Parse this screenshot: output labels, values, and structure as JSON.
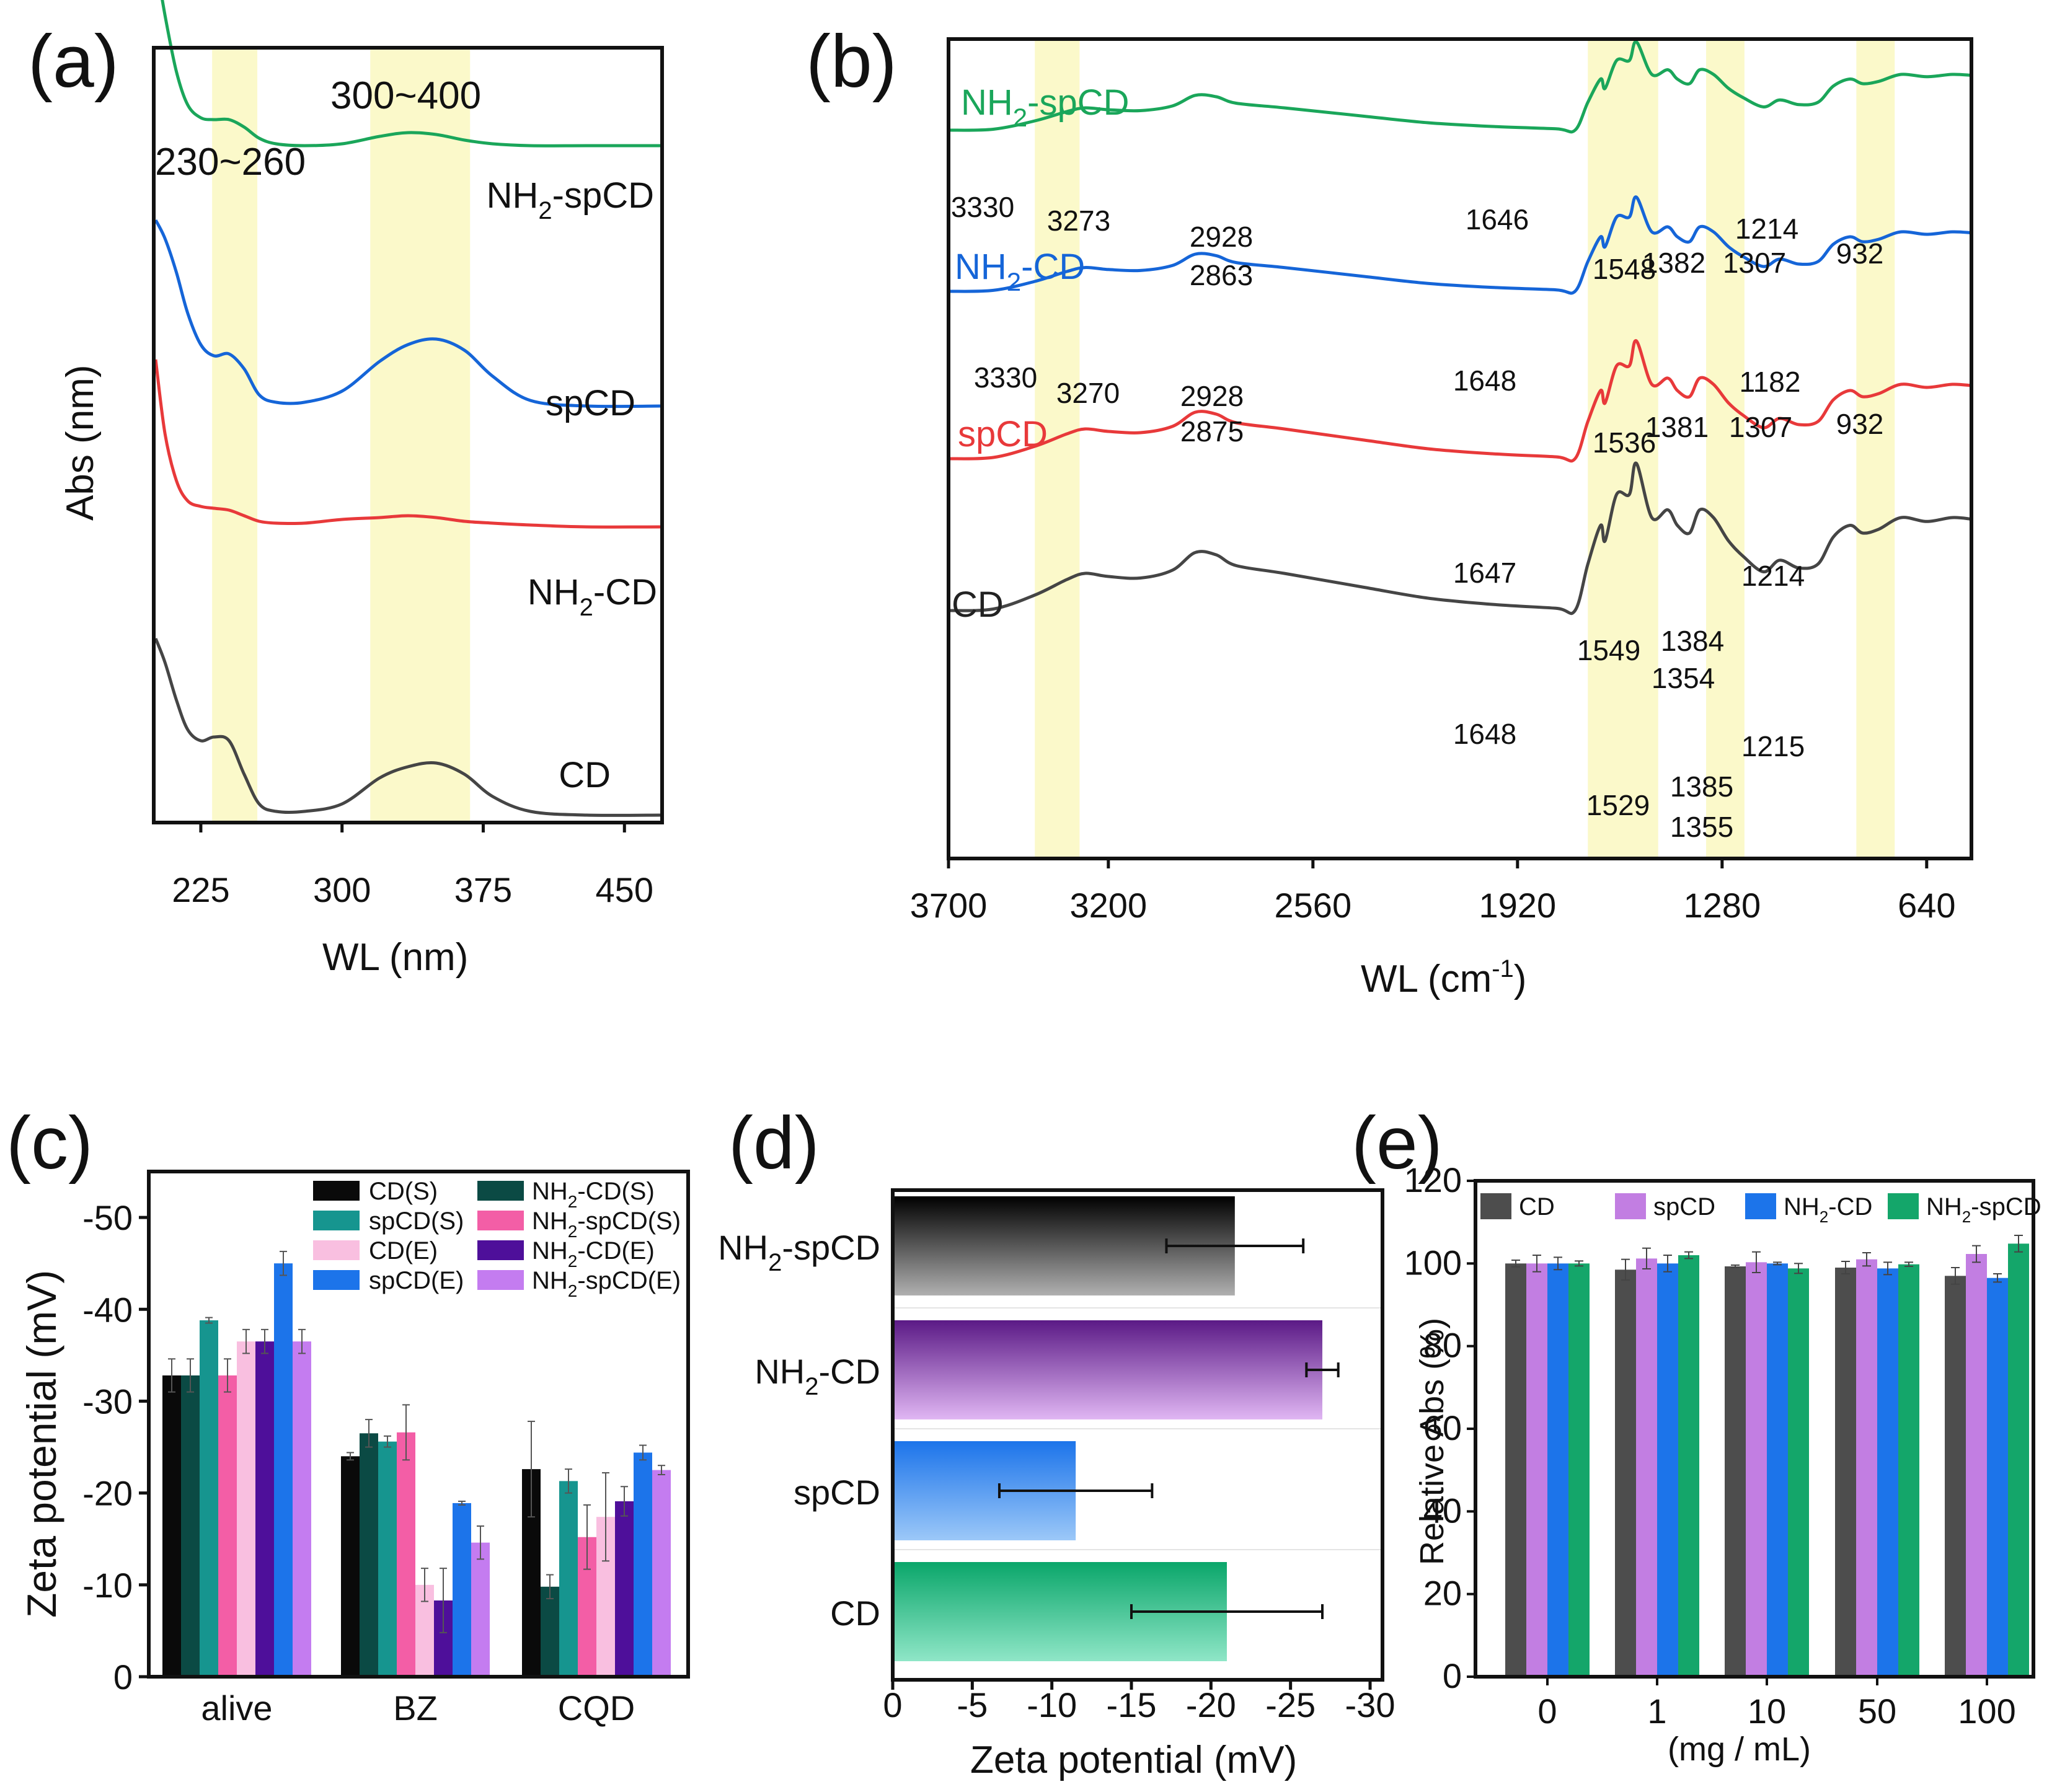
{
  "panels": {
    "a": {
      "letter": "(a)",
      "xlabel": "WL (nm)",
      "ylabel": "Abs (nm)",
      "band_labels": [
        "230~260",
        "300~400"
      ],
      "xticks": [
        "225",
        "300",
        "375",
        "450"
      ]
    },
    "b": {
      "letter": "(b)",
      "xlabel_main": "WL (cm",
      "xlabel_sup": "-1",
      "xlabel_end": ")",
      "xticks": [
        "3700",
        "3200",
        "2560",
        "1920",
        "1280",
        "640"
      ]
    },
    "c": {
      "letter": "(c)",
      "ylabel": "Zeta potential (mV)"
    },
    "d": {
      "letter": "(d)",
      "xlabel": "Zeta potential (mV)"
    },
    "e": {
      "letter": "(e)",
      "ylabel": "Relative Abs (%)",
      "xlabel": "(mg / mL)"
    }
  },
  "chart_data": [
    {
      "panel": "a",
      "type": "line",
      "xlabel": "WL (nm)",
      "ylabel": "Abs (nm)",
      "xlim": [
        200,
        470
      ],
      "highlight_bands": [
        {
          "label": "230~260",
          "range": [
            231,
            255
          ]
        },
        {
          "label": "300~400",
          "range": [
            315,
            368
          ]
        }
      ],
      "series": [
        {
          "name": "NH2-spCD",
          "label_main": "NH",
          "label_sub": "2",
          "label_tail": "-spCD",
          "color": "#1aa65a",
          "offset": 3.6,
          "x": [
            201,
            206,
            212,
            218,
            225,
            232,
            240,
            248,
            256,
            265,
            280,
            300,
            320,
            335,
            350,
            365,
            380,
            400,
            430,
            470
          ],
          "y": [
            1.0,
            0.7,
            0.4,
            0.22,
            0.15,
            0.14,
            0.14,
            0.1,
            0.04,
            0.01,
            0.0,
            0.01,
            0.05,
            0.07,
            0.06,
            0.03,
            0.01,
            0.0,
            0.0,
            0.0
          ]
        },
        {
          "name": "spCD",
          "label_main": "spCD",
          "label_sub": "",
          "label_tail": "",
          "color": "#1565d8",
          "offset": 2.2,
          "x": [
            201,
            206,
            212,
            218,
            225,
            232,
            240,
            248,
            256,
            265,
            280,
            300,
            320,
            335,
            350,
            365,
            380,
            400,
            430,
            470
          ],
          "y": [
            1.0,
            0.9,
            0.72,
            0.5,
            0.33,
            0.27,
            0.28,
            0.2,
            0.06,
            0.02,
            0.02,
            0.08,
            0.24,
            0.33,
            0.36,
            0.3,
            0.16,
            0.03,
            0.0,
            0.0
          ]
        },
        {
          "name": "NH2-CD",
          "label_main": "NH",
          "label_sub": "2",
          "label_tail": "-CD",
          "color": "#e8393a",
          "offset": 1.55,
          "x": [
            201,
            206,
            212,
            218,
            225,
            232,
            240,
            248,
            256,
            265,
            280,
            300,
            320,
            335,
            350,
            365,
            380,
            400,
            430,
            470
          ],
          "y": [
            0.9,
            0.5,
            0.25,
            0.14,
            0.11,
            0.1,
            0.09,
            0.06,
            0.03,
            0.02,
            0.02,
            0.04,
            0.05,
            0.06,
            0.05,
            0.03,
            0.02,
            0.01,
            0.0,
            0.0
          ]
        },
        {
          "name": "CD",
          "label_main": "CD",
          "label_sub": "",
          "label_tail": "",
          "color": "#454545",
          "offset": 0.0,
          "x": [
            201,
            206,
            212,
            218,
            225,
            232,
            240,
            248,
            256,
            265,
            280,
            300,
            320,
            335,
            350,
            365,
            380,
            400,
            430,
            470
          ],
          "y": [
            0.95,
            0.82,
            0.62,
            0.46,
            0.4,
            0.42,
            0.4,
            0.22,
            0.06,
            0.02,
            0.02,
            0.06,
            0.2,
            0.26,
            0.28,
            0.22,
            0.1,
            0.02,
            0.0,
            0.0
          ]
        }
      ]
    },
    {
      "panel": "b",
      "type": "line",
      "xlabel": "WL (cm-1)",
      "xlim": [
        3700,
        500
      ],
      "x_reversed": true,
      "highlight_bands": [
        [
          3430,
          3290
        ],
        [
          1700,
          1480
        ],
        [
          1330,
          1210
        ],
        [
          860,
          740
        ]
      ],
      "series": [
        {
          "name": "NH2-spCD",
          "label_main": "NH",
          "label_sub": "2",
          "label_tail": "-spCD",
          "color": "#1aa65a",
          "peaks": [
            "3330",
            "3273",
            "2928",
            "2863",
            "1646",
            "1548",
            "1382",
            "1307",
            "1214",
            "932"
          ]
        },
        {
          "name": "NH2-CD",
          "label_main": "NH",
          "label_sub": "2",
          "label_tail": "-CD",
          "color": "#1565d8",
          "peaks": [
            "3330",
            "3270",
            "2928",
            "2875",
            "1648",
            "1536",
            "1381",
            "1307",
            "1182",
            "932"
          ]
        },
        {
          "name": "spCD",
          "label_main": "spCD",
          "label_sub": "",
          "label_tail": "",
          "color": "#e8393a",
          "peaks": [
            "1647",
            "1549",
            "1384",
            "1354",
            "1214"
          ]
        },
        {
          "name": "CD",
          "label_main": "CD",
          "label_sub": "",
          "label_tail": "",
          "color": "#454545",
          "peaks": [
            "1648",
            "1529",
            "1385",
            "1355",
            "1215"
          ]
        }
      ]
    },
    {
      "panel": "c",
      "type": "bar",
      "ylabel": "Zeta potential (mV)",
      "ylim": [
        0,
        -55
      ],
      "yticks": [
        "0",
        "-10",
        "-20",
        "-30",
        "-40",
        "-50"
      ],
      "categories": [
        "alive",
        "BZ",
        "CQD"
      ],
      "series": [
        {
          "name": "CD(S)",
          "label_main": "CD(S)",
          "label_sub": "",
          "label_tail": "",
          "color": "#0a0a0a",
          "values": [
            -32.8,
            -24.0,
            -22.6
          ],
          "errors": [
            1.8,
            0.4,
            5.2
          ]
        },
        {
          "name": "NH2-CD(S)",
          "label_main": "NH",
          "label_sub": "2",
          "label_tail": "-CD(S)",
          "color": "#0b4a44",
          "values": [
            -32.8,
            -26.5,
            -9.8
          ],
          "errors": [
            1.8,
            1.5,
            1.3
          ]
        },
        {
          "name": "spCD(S)",
          "label_main": "spCD(S)",
          "label_sub": "",
          "label_tail": "",
          "color": "#16958f",
          "values": [
            -38.8,
            -25.6,
            -21.3
          ],
          "errors": [
            0.3,
            0.6,
            1.3
          ]
        },
        {
          "name": "NH2-spCD(S)",
          "label_main": "NH",
          "label_sub": "2",
          "label_tail": "-spCD(S)",
          "color": "#f35ea6",
          "values": [
            -32.8,
            -26.6,
            -15.2
          ],
          "errors": [
            1.8,
            3.0,
            3.5
          ]
        },
        {
          "name": "CD(E)",
          "label_main": "CD(E)",
          "label_sub": "",
          "label_tail": "",
          "color": "#f9bfe0",
          "values": [
            -36.5,
            -10.0,
            -17.4
          ],
          "errors": [
            1.3,
            1.8,
            4.8
          ]
        },
        {
          "name": "NH2-CD(E)",
          "label_main": "NH",
          "label_sub": "2",
          "label_tail": "-CD(E)",
          "color": "#4e0f9a",
          "values": [
            -36.5,
            -8.3,
            -19.1
          ],
          "errors": [
            1.3,
            3.5,
            1.6
          ]
        },
        {
          "name": "spCD(E)",
          "label_main": "spCD(E)",
          "label_sub": "",
          "label_tail": "",
          "color": "#1c74ea",
          "values": [
            -45.0,
            -18.9,
            -24.4
          ],
          "errors": [
            1.3,
            0.2,
            0.8
          ]
        },
        {
          "name": "NH2-spCD(E)",
          "label_main": "NH",
          "label_sub": "2",
          "label_tail": "-spCD(E)",
          "color": "#c47cf0",
          "values": [
            -36.5,
            -14.6,
            -22.5
          ],
          "errors": [
            1.3,
            1.8,
            0.5
          ]
        }
      ]
    },
    {
      "panel": "d",
      "type": "bar",
      "orientation": "horizontal",
      "xlabel": "Zeta potential (mV)",
      "xlim": [
        0,
        -30
      ],
      "xticks": [
        "0",
        "-5",
        "-10",
        "-15",
        "-20",
        "-25",
        "-30"
      ],
      "categories": [
        {
          "name": "NH2-spCD",
          "label_main": "NH",
          "label_sub": "2",
          "label_tail": "-spCD"
        },
        {
          "name": "NH2-CD",
          "label_main": "NH",
          "label_sub": "2",
          "label_tail": "-CD"
        },
        {
          "name": "spCD",
          "label_main": "spCD",
          "label_sub": "",
          "label_tail": ""
        },
        {
          "name": "CD",
          "label_main": "CD",
          "label_sub": "",
          "label_tail": ""
        }
      ],
      "values": [
        -21.5,
        -27.0,
        -11.5,
        -21.0
      ],
      "errors": [
        4.3,
        1.0,
        4.8,
        6.0
      ],
      "colors": [
        [
          "#000000",
          "#b0b0b0"
        ],
        [
          "#5b1a86",
          "#e0b6f3"
        ],
        [
          "#1c74ea",
          "#9cc8f8"
        ],
        [
          "#0aa66a",
          "#8fe6c7"
        ]
      ]
    },
    {
      "panel": "e",
      "type": "bar",
      "ylabel": "Relative Abs (%)",
      "xlabel": "(mg / mL)",
      "ylim": [
        0,
        120
      ],
      "yticks": [
        "0",
        "20",
        "40",
        "60",
        "80",
        "100",
        "120"
      ],
      "categories": [
        "0",
        "1",
        "10",
        "50",
        "100"
      ],
      "series": [
        {
          "name": "CD",
          "label_main": "CD",
          "label_sub": "",
          "label_tail": "",
          "color": "#4d4d4d",
          "values": [
            100,
            98.5,
            99.3,
            99.0,
            97.0
          ],
          "errors": [
            0.8,
            2.5,
            0.3,
            1.5,
            2.0
          ]
        },
        {
          "name": "spCD",
          "label_main": "spCD",
          "label_sub": "",
          "label_tail": "",
          "color": "#c27ee2",
          "values": [
            100,
            101.2,
            100.3,
            101.0,
            102.3
          ],
          "errors": [
            2.0,
            2.5,
            2.5,
            1.6,
            2.0
          ]
        },
        {
          "name": "NH2-CD",
          "label_main": "NH",
          "label_sub": "2",
          "label_tail": "-CD",
          "color": "#1c74ea",
          "values": [
            100,
            100.0,
            100.0,
            98.8,
            96.5
          ],
          "errors": [
            1.5,
            2.0,
            0.3,
            1.5,
            1.0
          ]
        },
        {
          "name": "NH2-spCD",
          "label_main": "NH",
          "label_sub": "2",
          "label_tail": "-spCD",
          "color": "#14a66a",
          "values": [
            100,
            102.0,
            98.8,
            99.8,
            104.8
          ],
          "errors": [
            0.6,
            0.8,
            1.2,
            0.5,
            2.0
          ]
        }
      ]
    }
  ]
}
